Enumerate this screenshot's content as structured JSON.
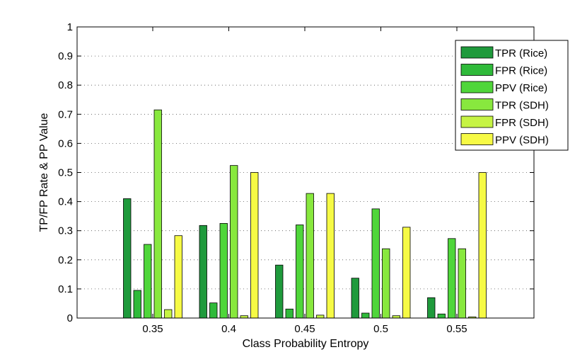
{
  "chart_data": {
    "type": "bar",
    "title": "",
    "xlabel": "Class Probability Entropy",
    "ylabel": "TP/FP Rate & PP Value",
    "categories": [
      "0.35",
      "0.4",
      "0.45",
      "0.5",
      "0.55"
    ],
    "ylim": [
      0,
      1
    ],
    "yticks": [
      "0",
      "0.1",
      "0.2",
      "0.3",
      "0.4",
      "0.5",
      "0.6",
      "0.7",
      "0.8",
      "0.9",
      "1"
    ],
    "grid": "horizontal-dotted",
    "legend_position": "top-right",
    "series": [
      {
        "name": "TPR (Rice)",
        "color": "#1f9a3c",
        "values": [
          0.41,
          0.318,
          0.182,
          0.137,
          0.07
        ]
      },
      {
        "name": "FPR (Rice)",
        "color": "#2fba3a",
        "values": [
          0.095,
          0.052,
          0.031,
          0.017,
          0.014
        ]
      },
      {
        "name": "PPV (Rice)",
        "color": "#4fd63a",
        "values": [
          0.253,
          0.325,
          0.32,
          0.375,
          0.273
        ]
      },
      {
        "name": "TPR (SDH)",
        "color": "#88e83e",
        "values": [
          0.715,
          0.524,
          0.428,
          0.238,
          0.238
        ]
      },
      {
        "name": "FPR (SDH)",
        "color": "#c6f444",
        "values": [
          0.029,
          0.008,
          0.01,
          0.008,
          0.004
        ]
      },
      {
        "name": "PPV (SDH)",
        "color": "#f6fa45",
        "values": [
          0.283,
          0.5,
          0.428,
          0.312,
          0.5
        ]
      }
    ]
  }
}
